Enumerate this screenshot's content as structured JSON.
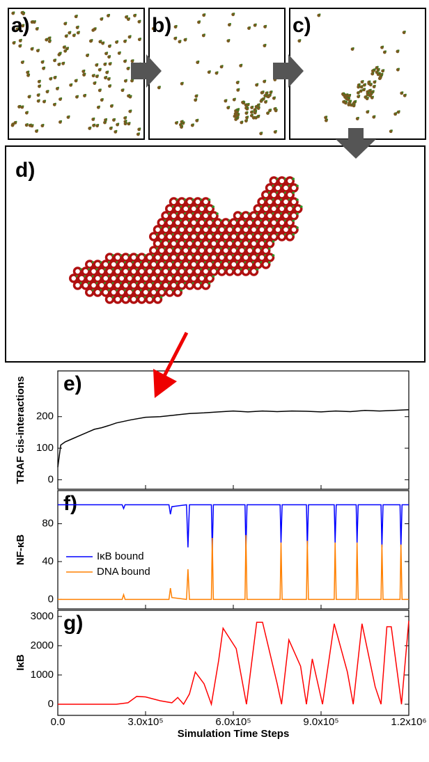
{
  "panels": {
    "labels": [
      "a)",
      "b)",
      "c)",
      "d)"
    ]
  },
  "chart_data": [
    {
      "type": "line",
      "annotation": "e)",
      "ylabel": "TRAF cis-interactions",
      "x": [
        0,
        10000,
        25000,
        50000,
        75000,
        100000,
        125000,
        150000,
        175000,
        200000,
        250000,
        300000,
        350000,
        400000,
        450000,
        500000,
        550000,
        600000,
        650000,
        700000,
        750000,
        800000,
        850000,
        900000,
        950000,
        1000000,
        1050000,
        1100000,
        1150000,
        1200000
      ],
      "series": [
        {
          "color": "#000000",
          "values": [
            40,
            110,
            120,
            130,
            140,
            150,
            160,
            165,
            172,
            180,
            190,
            198,
            200,
            205,
            210,
            212,
            215,
            218,
            215,
            218,
            216,
            218,
            217,
            215,
            218,
            216,
            220,
            218,
            220,
            222
          ]
        }
      ],
      "xlim": [
        0,
        1200000
      ],
      "ylim": [
        -30,
        345
      ],
      "yticks": [
        0,
        100,
        200
      ]
    },
    {
      "type": "line",
      "annotation": "f)",
      "ylabel": "NF-κB",
      "x": [
        0,
        220000,
        225000,
        230000,
        380000,
        385000,
        390000,
        440000,
        445000,
        450000,
        525000,
        528000,
        532000,
        640000,
        643000,
        647000,
        760000,
        763000,
        767000,
        850000,
        853000,
        857000,
        945000,
        948000,
        952000,
        1020000,
        1023000,
        1027000,
        1105000,
        1108000,
        1112000,
        1170000,
        1173000,
        1177000,
        1200000
      ],
      "series": [
        {
          "name": "IκB bound",
          "color": "#0000ff",
          "values": [
            100,
            100,
            96,
            100,
            100,
            90,
            98,
            100,
            55,
            100,
            100,
            50,
            100,
            100,
            52,
            100,
            100,
            60,
            100,
            100,
            55,
            100,
            100,
            60,
            100,
            100,
            60,
            100,
            100,
            55,
            100,
            100,
            55,
            100,
            100
          ]
        },
        {
          "name": "DNA bound",
          "color": "#ff8000",
          "values": [
            0,
            0,
            5,
            0,
            0,
            12,
            2,
            0,
            32,
            0,
            0,
            65,
            0,
            0,
            68,
            0,
            0,
            60,
            0,
            0,
            62,
            0,
            0,
            60,
            0,
            0,
            60,
            0,
            0,
            58,
            0,
            0,
            58,
            0,
            0
          ]
        }
      ],
      "xlim": [
        0,
        1200000
      ],
      "ylim": [
        -10,
        115
      ],
      "yticks": [
        0,
        40,
        80
      ]
    },
    {
      "type": "line",
      "annotation": "g)",
      "ylabel": "IκB",
      "xlabel": "Simulation Time Steps",
      "x": [
        0,
        200000,
        240000,
        270000,
        300000,
        350000,
        390000,
        410000,
        430000,
        450000,
        470000,
        500000,
        525000,
        550000,
        565000,
        610000,
        645000,
        670000,
        680000,
        700000,
        750000,
        765000,
        790000,
        830000,
        850000,
        870000,
        905000,
        945000,
        990000,
        1010000,
        1040000,
        1085000,
        1105000,
        1125000,
        1140000,
        1175000,
        1200000
      ],
      "series": [
        {
          "color": "#ff0000",
          "values": [
            0,
            0,
            50,
            270,
            250,
            120,
            50,
            230,
            0,
            350,
            1100,
            700,
            0,
            1500,
            2600,
            1900,
            0,
            2000,
            2800,
            2800,
            700,
            0,
            2200,
            1300,
            0,
            1550,
            0,
            2750,
            1100,
            0,
            2750,
            600,
            0,
            2650,
            2650,
            0,
            2850
          ]
        }
      ],
      "xlim": [
        0,
        1200000
      ],
      "ylim": [
        -380,
        3210
      ],
      "yticks": [
        0,
        1000,
        2000,
        3000
      ],
      "xticks": [
        {
          "value": 0,
          "label": "0.0"
        },
        {
          "value": 300000,
          "label": "3.0x10⁵"
        },
        {
          "value": 600000,
          "label": "6.0x10⁵"
        },
        {
          "value": 900000,
          "label": "9.0x10⁵"
        },
        {
          "value": 1200000,
          "label": "1.2x10⁶"
        }
      ]
    }
  ]
}
